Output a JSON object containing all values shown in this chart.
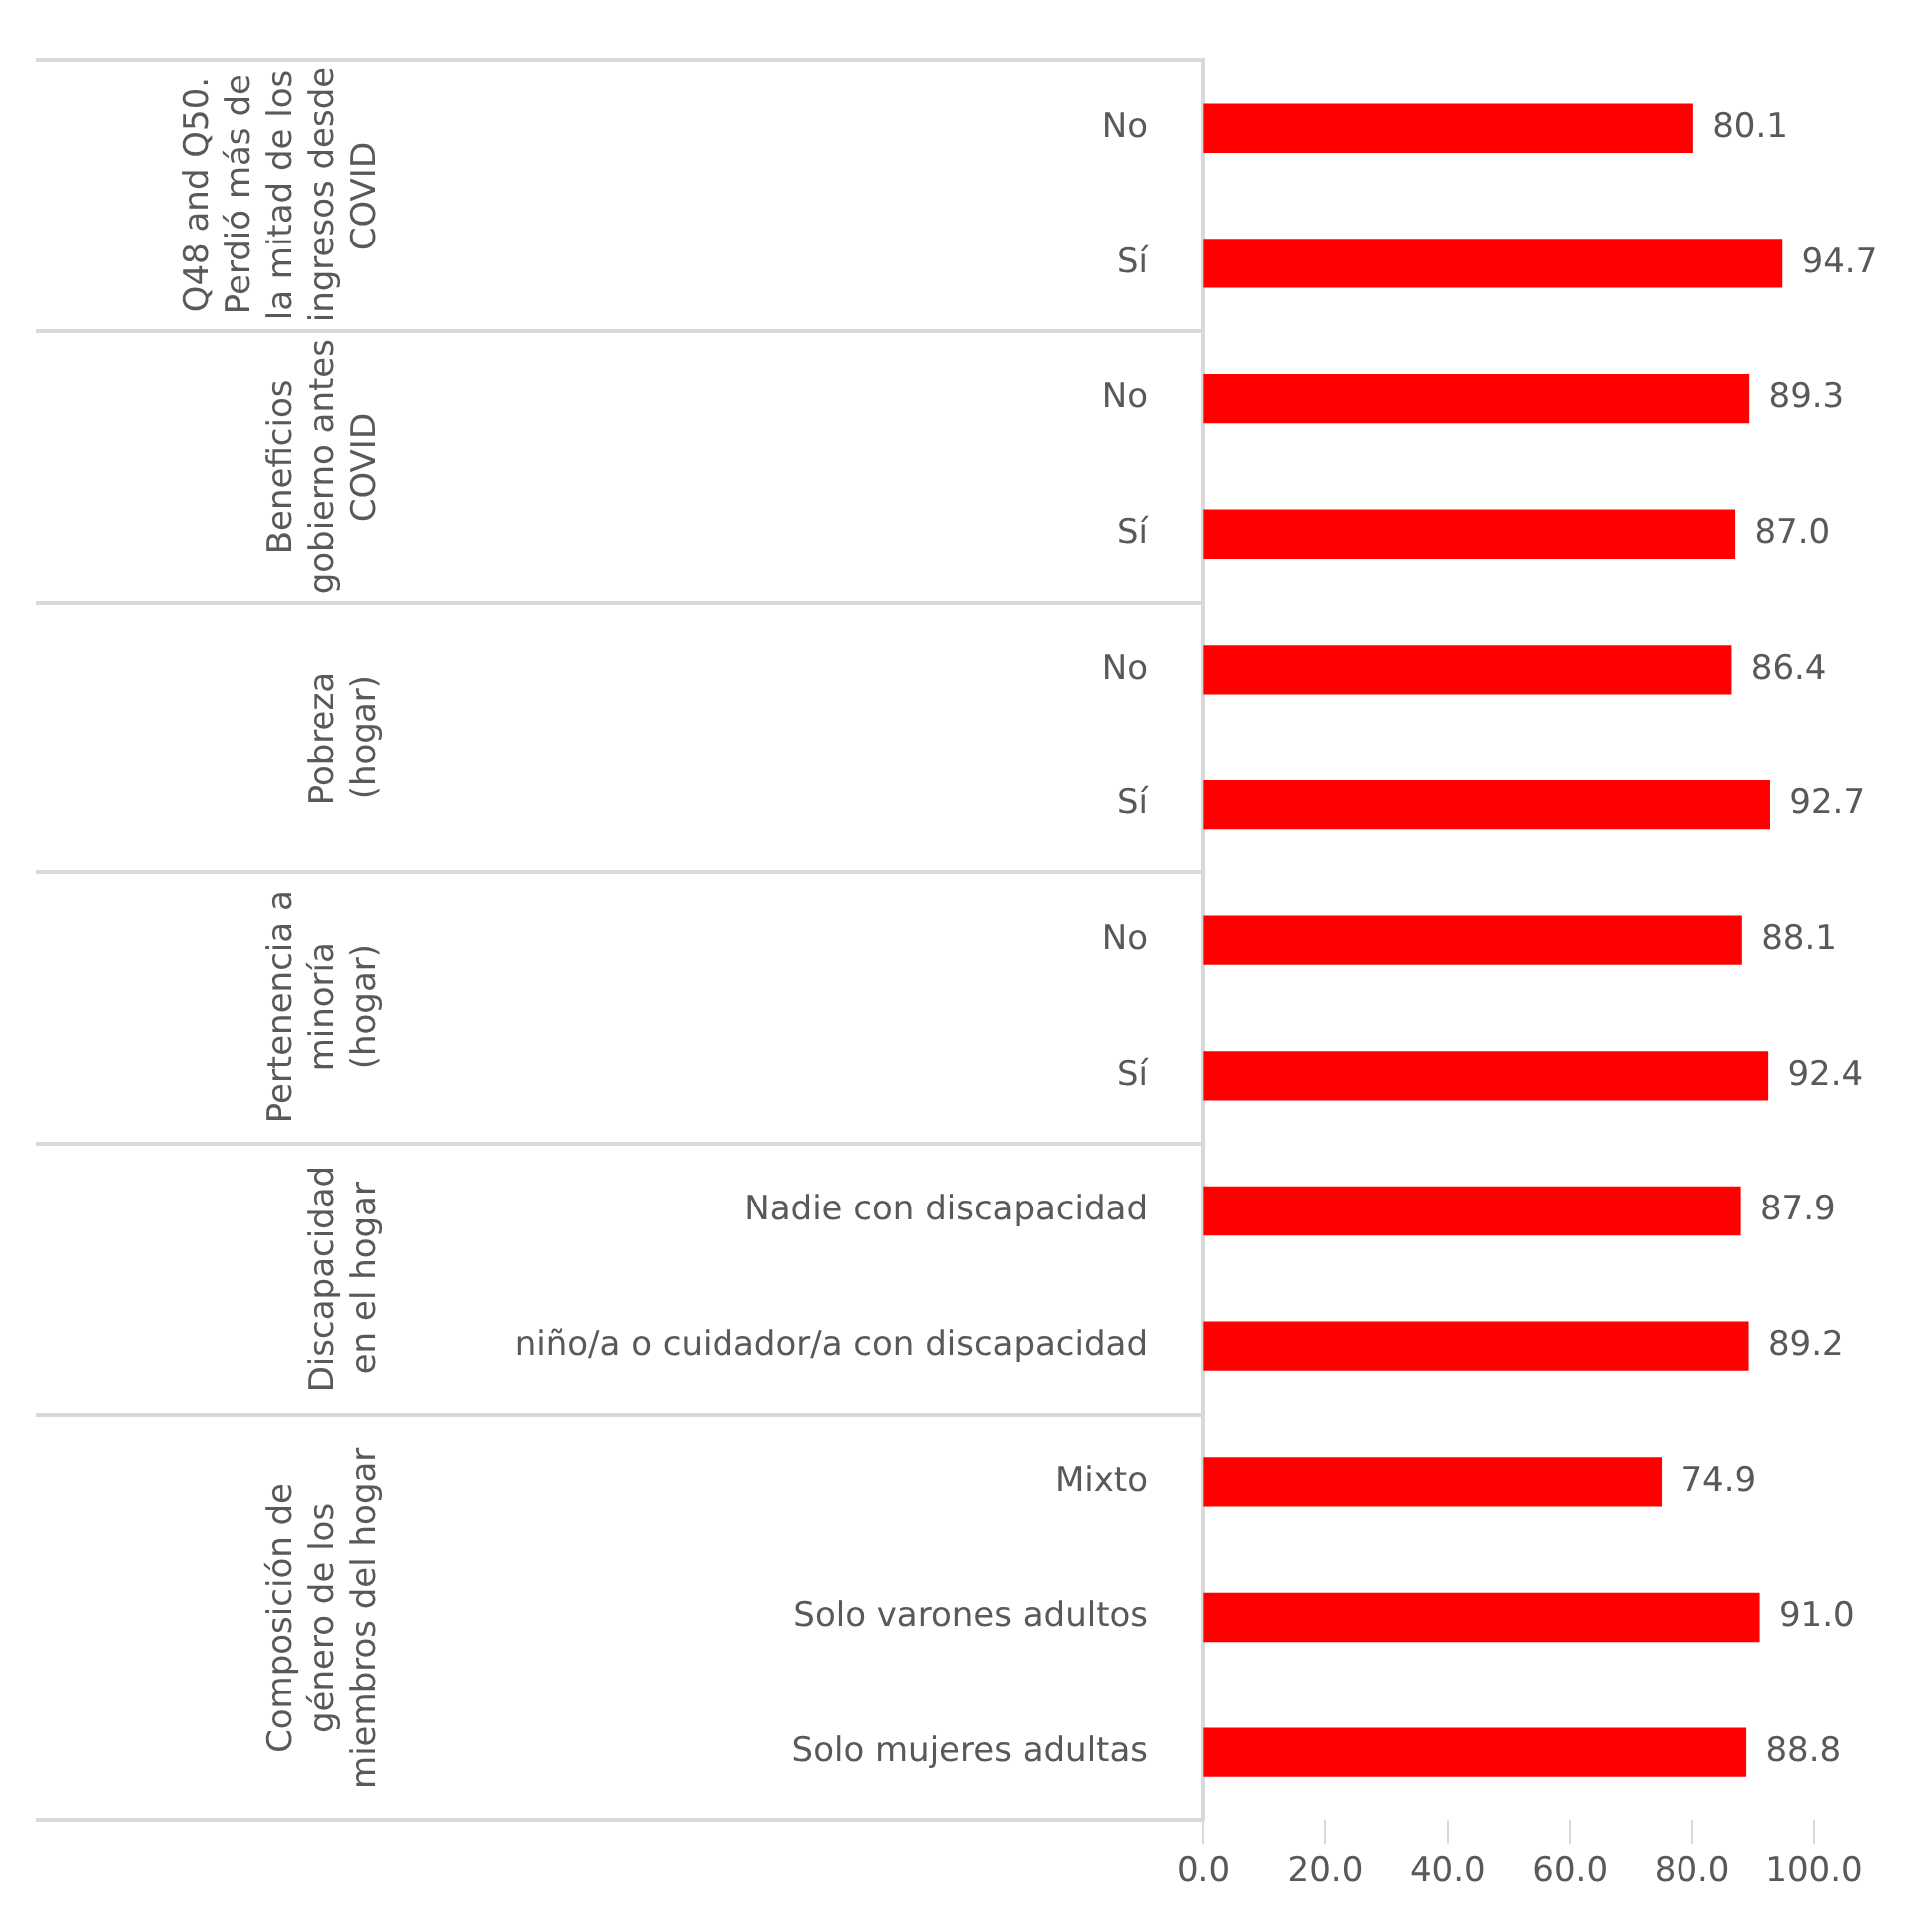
{
  "chart_data": {
    "type": "bar",
    "orientation": "horizontal",
    "categories": [
      "No",
      "Sí",
      "No",
      "Sí",
      "No",
      "Sí",
      "No",
      "Sí",
      "Nadie con discapacidad",
      "niño/a o cuidador/a con discapacidad",
      "Mixto",
      "Solo varones adultos",
      "Solo mujeres adultas"
    ],
    "values": [
      80.1,
      94.7,
      89.3,
      87.0,
      86.4,
      92.7,
      88.1,
      92.4,
      87.9,
      89.2,
      74.9,
      91.0,
      88.8
    ],
    "value_labels": [
      "80.1",
      "94.7",
      "89.3",
      "87.0",
      "86.4",
      "92.7",
      "88.1",
      "92.4",
      "87.9",
      "89.2",
      "74.9",
      "91.0",
      "88.8"
    ],
    "color": "#ff0000",
    "xlim": [
      0,
      100
    ],
    "xticks": [
      {
        "value": 0,
        "label": "0.0"
      },
      {
        "value": 20,
        "label": "20.0"
      },
      {
        "value": 40,
        "label": "40.0"
      },
      {
        "value": 60,
        "label": "60.0"
      },
      {
        "value": 80,
        "label": "80.0"
      },
      {
        "value": 100,
        "label": "100.0"
      }
    ],
    "grid": false,
    "legend": false,
    "annotations": [
      "Q48 and Q50. Perdió más de la mitad de los ingresos desde COVID",
      "Beneficios gobierno antes COVID",
      "Pobreza (hogar)",
      "Pertenencia a minoría (hogar)",
      "Discapacidad en el hogar",
      "Composición de género de los miembros del hogar"
    ]
  }
}
